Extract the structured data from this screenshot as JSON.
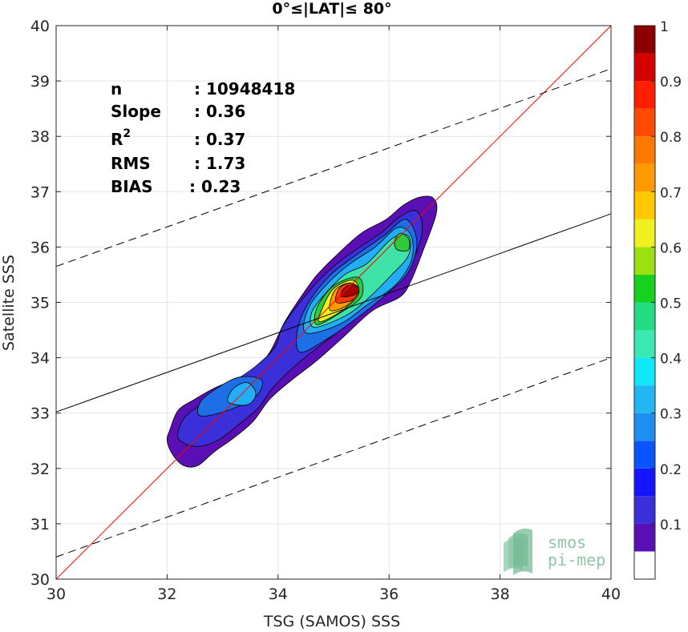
{
  "chart_data": {
    "type": "heatmap",
    "subtype": "density-contour-scatter",
    "title": "0°≤|LAT|≤ 80°",
    "xlabel": "TSG (SAMOS) SSS",
    "ylabel": "Satellite SSS",
    "xlim": [
      30,
      40
    ],
    "ylim": [
      30,
      40
    ],
    "xticks": [
      "30",
      "32",
      "34",
      "36",
      "38",
      "40"
    ],
    "yticks": [
      "30",
      "31",
      "32",
      "33",
      "34",
      "35",
      "36",
      "37",
      "38",
      "39",
      "40"
    ],
    "grid": true,
    "stats": [
      {
        "key": "n",
        "value": ": 10948418"
      },
      {
        "key": "Slope",
        "value": ": 0.36"
      },
      {
        "key": "R",
        "sup": "2",
        "value": ": 0.37"
      },
      {
        "key": "RMS",
        "value": ": 1.73"
      },
      {
        "key": "BIAS",
        "value": ": 0.23"
      }
    ],
    "lines": [
      {
        "name": "identity",
        "color": "#ff0000",
        "style": "solid",
        "points": [
          [
            30,
            30
          ],
          [
            40,
            40
          ]
        ]
      },
      {
        "name": "regression",
        "color": "#000000",
        "style": "solid",
        "points": [
          [
            30,
            33.02
          ],
          [
            40,
            36.6
          ]
        ]
      },
      {
        "name": "upper-bound",
        "color": "#000000",
        "style": "dashed",
        "points": [
          [
            30,
            35.65
          ],
          [
            40,
            39.22
          ]
        ]
      },
      {
        "name": "lower-bound",
        "color": "#000000",
        "style": "dashed",
        "points": [
          [
            30,
            30.4
          ],
          [
            40,
            34.0
          ]
        ]
      }
    ],
    "contours": [
      {
        "level": 0.05,
        "color": "#5a0fb4",
        "points": [
          [
            32.0,
            32.5
          ],
          [
            32.1,
            32.25
          ],
          [
            32.3,
            32.05
          ],
          [
            32.55,
            32.05
          ],
          [
            32.85,
            32.3
          ],
          [
            33.2,
            32.55
          ],
          [
            33.55,
            32.85
          ],
          [
            33.85,
            33.25
          ],
          [
            34.25,
            33.6
          ],
          [
            34.7,
            33.95
          ],
          [
            35.15,
            34.35
          ],
          [
            35.7,
            34.85
          ],
          [
            36.2,
            35.1
          ],
          [
            36.4,
            35.4
          ],
          [
            36.6,
            35.9
          ],
          [
            36.85,
            36.6
          ],
          [
            36.8,
            36.88
          ],
          [
            36.55,
            36.9
          ],
          [
            36.25,
            36.75
          ],
          [
            35.95,
            36.5
          ],
          [
            35.5,
            36.25
          ],
          [
            35.05,
            35.85
          ],
          [
            34.75,
            35.55
          ],
          [
            34.55,
            35.3
          ],
          [
            34.15,
            34.7
          ],
          [
            34.0,
            34.4
          ],
          [
            33.85,
            34.1
          ],
          [
            33.6,
            33.8
          ],
          [
            33.2,
            33.6
          ],
          [
            32.85,
            33.45
          ],
          [
            32.5,
            33.25
          ],
          [
            32.2,
            33.05
          ],
          [
            32.05,
            32.7
          ]
        ]
      },
      {
        "level": 0.15,
        "color": "#3b2fd9",
        "points": [
          [
            32.2,
            32.55
          ],
          [
            32.5,
            32.4
          ],
          [
            32.9,
            32.5
          ],
          [
            33.3,
            32.8
          ],
          [
            33.65,
            33.1
          ],
          [
            33.9,
            33.45
          ],
          [
            34.3,
            33.85
          ],
          [
            34.8,
            34.25
          ],
          [
            35.3,
            34.65
          ],
          [
            35.8,
            35.1
          ],
          [
            36.2,
            35.4
          ],
          [
            36.45,
            35.8
          ],
          [
            36.6,
            36.3
          ],
          [
            36.5,
            36.65
          ],
          [
            36.2,
            36.55
          ],
          [
            35.85,
            36.25
          ],
          [
            35.4,
            35.95
          ],
          [
            35.0,
            35.65
          ],
          [
            34.6,
            35.25
          ],
          [
            34.1,
            34.6
          ],
          [
            33.95,
            34.2
          ],
          [
            33.6,
            33.85
          ],
          [
            33.1,
            33.5
          ],
          [
            32.6,
            33.15
          ],
          [
            32.3,
            32.9
          ]
        ]
      },
      {
        "level": 0.25,
        "color": "#1e6fe6",
        "points": [
          [
            32.6,
            32.95
          ],
          [
            33.1,
            33.05
          ],
          [
            33.6,
            33.3
          ],
          [
            33.7,
            33.6
          ],
          [
            33.3,
            33.65
          ],
          [
            32.9,
            33.45
          ],
          [
            32.6,
            33.2
          ]
        ]
      },
      {
        "level": 0.25,
        "color": "#1e6fe6",
        "points": [
          [
            34.4,
            34.1
          ],
          [
            34.9,
            34.35
          ],
          [
            35.4,
            34.7
          ],
          [
            35.9,
            35.1
          ],
          [
            36.35,
            35.55
          ],
          [
            36.5,
            36.1
          ],
          [
            36.3,
            36.5
          ],
          [
            35.9,
            36.2
          ],
          [
            35.4,
            35.85
          ],
          [
            34.95,
            35.5
          ],
          [
            34.55,
            35.0
          ],
          [
            34.35,
            34.5
          ]
        ]
      },
      {
        "level": 0.35,
        "color": "#22aef5",
        "points": [
          [
            33.1,
            33.2
          ],
          [
            33.45,
            33.15
          ],
          [
            33.6,
            33.35
          ],
          [
            33.45,
            33.55
          ],
          [
            33.2,
            33.45
          ]
        ]
      },
      {
        "level": 0.35,
        "color": "#22aef5",
        "points": [
          [
            34.5,
            34.45
          ],
          [
            35.1,
            34.6
          ],
          [
            35.6,
            34.95
          ],
          [
            36.1,
            35.3
          ],
          [
            36.4,
            35.75
          ],
          [
            36.4,
            36.2
          ],
          [
            36.15,
            36.35
          ],
          [
            35.75,
            36.0
          ],
          [
            35.3,
            35.7
          ],
          [
            34.9,
            35.35
          ],
          [
            34.55,
            34.9
          ]
        ]
      },
      {
        "level": 0.45,
        "color": "#3fe3a8",
        "points": [
          [
            34.65,
            34.55
          ],
          [
            35.2,
            34.75
          ],
          [
            35.6,
            35.05
          ],
          [
            36.05,
            35.5
          ],
          [
            36.35,
            35.85
          ],
          [
            36.35,
            36.2
          ],
          [
            36.05,
            36.15
          ],
          [
            35.6,
            35.7
          ],
          [
            35.2,
            35.5
          ],
          [
            34.8,
            35.1
          ],
          [
            34.6,
            34.8
          ]
        ]
      },
      {
        "level": 0.55,
        "color": "#2ecc3a",
        "points": [
          [
            34.7,
            34.6
          ],
          [
            35.1,
            34.8
          ],
          [
            35.5,
            35.1
          ],
          [
            35.45,
            35.45
          ],
          [
            35.0,
            35.3
          ],
          [
            34.7,
            34.9
          ]
        ]
      },
      {
        "level": 0.55,
        "color": "#2ecc3a",
        "points": [
          [
            36.15,
            35.95
          ],
          [
            36.35,
            35.95
          ],
          [
            36.35,
            36.15
          ],
          [
            36.2,
            36.25
          ],
          [
            36.1,
            36.1
          ]
        ]
      },
      {
        "level": 0.65,
        "color": "#f0f020",
        "points": [
          [
            34.75,
            34.65
          ],
          [
            35.15,
            34.85
          ],
          [
            35.45,
            35.15
          ],
          [
            35.35,
            35.4
          ],
          [
            35.0,
            35.25
          ],
          [
            34.8,
            34.9
          ]
        ]
      },
      {
        "level": 0.75,
        "color": "#ff9a00",
        "points": [
          [
            34.95,
            34.85
          ],
          [
            35.25,
            34.95
          ],
          [
            35.45,
            35.2
          ],
          [
            35.3,
            35.35
          ],
          [
            35.05,
            35.25
          ],
          [
            34.95,
            35.05
          ]
        ]
      },
      {
        "level": 0.85,
        "color": "#ff3a00",
        "points": [
          [
            35.05,
            35.0
          ],
          [
            35.35,
            35.05
          ],
          [
            35.45,
            35.25
          ],
          [
            35.3,
            35.35
          ],
          [
            35.1,
            35.25
          ]
        ]
      },
      {
        "level": 0.95,
        "color": "#a80000",
        "points": [
          [
            35.15,
            35.1
          ],
          [
            35.4,
            35.15
          ],
          [
            35.4,
            35.3
          ],
          [
            35.25,
            35.3
          ],
          [
            35.15,
            35.2
          ]
        ]
      }
    ],
    "colorbar": {
      "range": [
        0,
        1
      ],
      "ticks": [
        "0.1",
        "0.2",
        "0.3",
        "0.4",
        "0.5",
        "0.6",
        "0.7",
        "0.8",
        "0.9",
        "1"
      ],
      "bands": [
        {
          "from": 0.0,
          "to": 0.05,
          "color": "#ffffff"
        },
        {
          "from": 0.05,
          "to": 0.1,
          "color": "#5a0fb4"
        },
        {
          "from": 0.1,
          "to": 0.15,
          "color": "#3b2fd9"
        },
        {
          "from": 0.15,
          "to": 0.2,
          "color": "#1515ff"
        },
        {
          "from": 0.2,
          "to": 0.25,
          "color": "#0a55ff"
        },
        {
          "from": 0.25,
          "to": 0.3,
          "color": "#1e8ff0"
        },
        {
          "from": 0.3,
          "to": 0.35,
          "color": "#22b6f5"
        },
        {
          "from": 0.35,
          "to": 0.4,
          "color": "#10e8f8"
        },
        {
          "from": 0.4,
          "to": 0.45,
          "color": "#3ce8b4"
        },
        {
          "from": 0.45,
          "to": 0.5,
          "color": "#22dc82"
        },
        {
          "from": 0.5,
          "to": 0.55,
          "color": "#18d020"
        },
        {
          "from": 0.55,
          "to": 0.6,
          "color": "#9be010"
        },
        {
          "from": 0.6,
          "to": 0.65,
          "color": "#f0f020"
        },
        {
          "from": 0.65,
          "to": 0.7,
          "color": "#ffc800"
        },
        {
          "from": 0.7,
          "to": 0.75,
          "color": "#ff9a00"
        },
        {
          "from": 0.75,
          "to": 0.8,
          "color": "#ff7800"
        },
        {
          "from": 0.8,
          "to": 0.85,
          "color": "#ff4a00"
        },
        {
          "from": 0.85,
          "to": 0.9,
          "color": "#ff1e00"
        },
        {
          "from": 0.9,
          "to": 0.95,
          "color": "#d40000"
        },
        {
          "from": 0.95,
          "to": 1.0,
          "color": "#8c0000"
        }
      ]
    },
    "logo": {
      "line1": "smos",
      "line2": "pi-mep",
      "color": "#8cc8a8"
    }
  }
}
